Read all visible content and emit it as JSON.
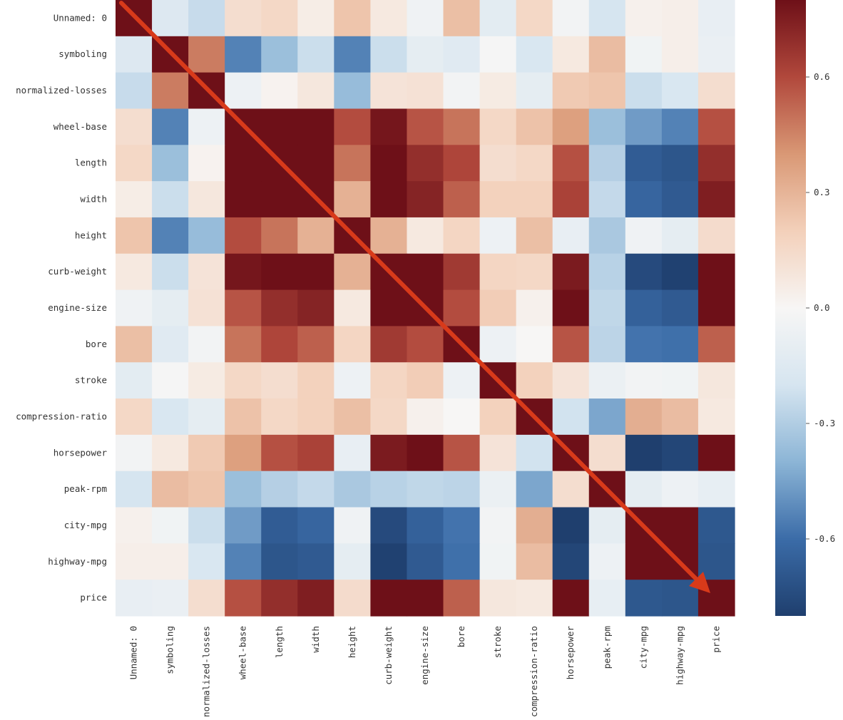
{
  "chart_data": {
    "type": "heatmap",
    "title": "",
    "xlabel": "",
    "ylabel": "",
    "variables": [
      "Unnamed: 0",
      "symboling",
      "normalized-losses",
      "wheel-base",
      "length",
      "width",
      "height",
      "curb-weight",
      "engine-size",
      "bore",
      "stroke",
      "compression-ratio",
      "horsepower",
      "peak-rpm",
      "city-mpg",
      "highway-mpg",
      "price"
    ],
    "matrix": [
      [
        1.0,
        -0.16,
        -0.24,
        0.13,
        0.16,
        0.05,
        0.24,
        0.07,
        -0.05,
        0.26,
        -0.12,
        0.16,
        -0.03,
        -0.2,
        0.03,
        0.04,
        -0.09
      ],
      [
        -0.16,
        1.0,
        0.47,
        -0.54,
        -0.36,
        -0.23,
        -0.54,
        -0.23,
        -0.11,
        -0.14,
        -0.01,
        -0.18,
        0.07,
        0.27,
        -0.04,
        0.04,
        -0.08
      ],
      [
        -0.24,
        0.47,
        1.0,
        -0.06,
        0.02,
        0.08,
        -0.37,
        0.1,
        0.11,
        -0.03,
        0.06,
        -0.11,
        0.22,
        0.24,
        -0.23,
        -0.18,
        0.13
      ],
      [
        0.13,
        -0.54,
        -0.06,
        1.0,
        0.88,
        0.82,
        0.59,
        0.78,
        0.57,
        0.49,
        0.16,
        0.25,
        0.37,
        -0.36,
        -0.47,
        -0.54,
        0.58
      ],
      [
        0.16,
        -0.36,
        0.02,
        0.88,
        1.0,
        0.86,
        0.49,
        0.88,
        0.69,
        0.61,
        0.13,
        0.16,
        0.58,
        -0.29,
        -0.67,
        -0.7,
        0.69
      ],
      [
        0.05,
        -0.23,
        0.08,
        0.82,
        0.86,
        1.0,
        0.31,
        0.87,
        0.73,
        0.54,
        0.19,
        0.19,
        0.62,
        -0.25,
        -0.63,
        -0.68,
        0.75
      ],
      [
        0.24,
        -0.54,
        -0.37,
        0.59,
        0.49,
        0.31,
        1.0,
        0.31,
        0.07,
        0.17,
        -0.06,
        0.26,
        -0.09,
        -0.32,
        -0.05,
        -0.11,
        0.14
      ],
      [
        0.07,
        -0.23,
        0.1,
        0.78,
        0.88,
        0.87,
        0.31,
        1.0,
        0.85,
        0.65,
        0.17,
        0.16,
        0.76,
        -0.28,
        -0.75,
        -0.79,
        0.83
      ],
      [
        -0.05,
        -0.11,
        0.11,
        0.57,
        0.69,
        0.73,
        0.07,
        0.85,
        1.0,
        0.59,
        0.21,
        0.03,
        0.82,
        -0.26,
        -0.65,
        -0.68,
        0.87
      ],
      [
        0.26,
        -0.14,
        -0.03,
        0.49,
        0.61,
        0.54,
        0.17,
        0.65,
        0.59,
        1.0,
        -0.06,
        0.0,
        0.57,
        -0.27,
        -0.58,
        -0.59,
        0.54
      ],
      [
        -0.12,
        -0.01,
        0.06,
        0.16,
        0.13,
        0.19,
        -0.06,
        0.17,
        0.21,
        -0.06,
        1.0,
        0.19,
        0.1,
        -0.07,
        -0.03,
        -0.04,
        0.08
      ],
      [
        0.16,
        -0.18,
        -0.11,
        0.25,
        0.16,
        0.19,
        0.26,
        0.16,
        0.03,
        0.0,
        0.19,
        1.0,
        -0.21,
        -0.44,
        0.32,
        0.27,
        0.07
      ],
      [
        -0.03,
        0.07,
        0.22,
        0.37,
        0.58,
        0.62,
        -0.09,
        0.76,
        0.82,
        0.57,
        0.1,
        -0.21,
        1.0,
        0.13,
        -0.8,
        -0.77,
        0.81
      ],
      [
        -0.2,
        0.27,
        0.24,
        -0.36,
        -0.29,
        -0.25,
        -0.32,
        -0.28,
        -0.26,
        -0.27,
        -0.07,
        -0.44,
        0.13,
        1.0,
        -0.11,
        -0.06,
        -0.1
      ],
      [
        0.03,
        -0.04,
        -0.23,
        -0.47,
        -0.67,
        -0.63,
        -0.05,
        -0.75,
        -0.65,
        -0.58,
        -0.03,
        0.32,
        -0.8,
        -0.11,
        1.0,
        0.97,
        -0.69
      ],
      [
        0.04,
        0.04,
        -0.18,
        -0.54,
        -0.7,
        -0.68,
        -0.11,
        -0.79,
        -0.68,
        -0.59,
        -0.04,
        0.27,
        -0.77,
        -0.06,
        0.97,
        1.0,
        -0.7
      ],
      [
        -0.09,
        -0.08,
        0.13,
        0.58,
        0.69,
        0.75,
        0.14,
        0.83,
        0.87,
        0.54,
        0.08,
        0.07,
        0.81,
        -0.1,
        -0.69,
        -0.7,
        1.0
      ]
    ],
    "colorbar": {
      "range": [
        -0.8,
        0.8
      ],
      "ticks": [
        0.6,
        0.3,
        0.0,
        -0.3,
        -0.6
      ],
      "tick_labels": [
        "0.6",
        "0.3",
        "0.0",
        "-0.3",
        "-0.6"
      ],
      "colormap": "RdBu_r",
      "colors": [
        "#1f3f6e",
        "#3b6ca8",
        "#8cb5d6",
        "#d6e5f0",
        "#f7f6f5",
        "#f3d0ba",
        "#d99875",
        "#b1483c",
        "#6e1018"
      ]
    },
    "annotation": {
      "kind": "arrow",
      "from": "top-left",
      "to": "bottom-right",
      "color": "#d83a1a"
    }
  }
}
